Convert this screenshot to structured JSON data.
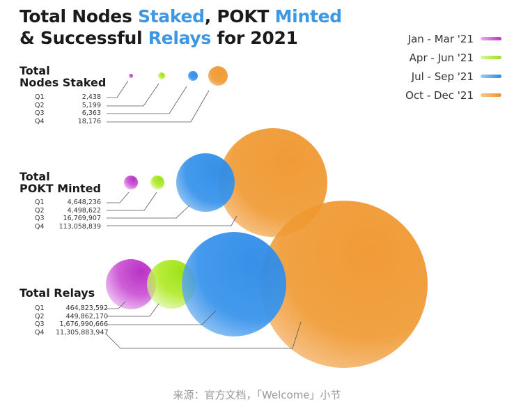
{
  "title": {
    "line1_a": "Total Nodes ",
    "line1_b": "Staked",
    ", POKT ": "",
    "line1_c": ", POKT ",
    "line1_d": "Minted",
    "line2_a": "& Successful ",
    "line2_b": "Relays",
    "line2_c": " for 2021"
  },
  "legend": [
    {
      "label": "Jan - Mar '21",
      "color": "#b832c4"
    },
    {
      "label": "Apr - Jun '21",
      "color": "#9de21c"
    },
    {
      "label": "Jul - Sep '21",
      "color": "#2d8ae6"
    },
    {
      "label": "Oct - Dec '21",
      "color": "#ef9226"
    }
  ],
  "groups": [
    {
      "title1": "Total",
      "title2": "Nodes Staked",
      "rows": [
        {
          "q": "Q1",
          "v": "2,438"
        },
        {
          "q": "Q2",
          "v": "5,199"
        },
        {
          "q": "Q3",
          "v": "6,363"
        },
        {
          "q": "Q4",
          "v": "18,176"
        }
      ]
    },
    {
      "title1": "Total",
      "title2": "POKT Minted",
      "rows": [
        {
          "q": "Q1",
          "v": "4,648,236"
        },
        {
          "q": "Q2",
          "v": "4,498,622"
        },
        {
          "q": "Q3",
          "v": "16,769,907"
        },
        {
          "q": "Q4",
          "v": "113,058,839"
        }
      ]
    },
    {
      "title1": "Total Relays",
      "title2": "",
      "rows": [
        {
          "q": "Q1",
          "v": "464,823,592"
        },
        {
          "q": "Q2",
          "v": "449,862,170"
        },
        {
          "q": "Q3",
          "v": "1,676,990,666"
        },
        {
          "q": "Q4",
          "v": "11,305,883,947"
        }
      ]
    }
  ],
  "source": "来源：官方文档，「Welcome」小节",
  "chart_data": {
    "type": "bubble",
    "title": "Total Nodes Staked, POKT Minted & Successful Relays for 2021",
    "categories": [
      "Q1",
      "Q2",
      "Q3",
      "Q4"
    ],
    "series": [
      {
        "name": "Total Nodes Staked",
        "values": [
          2438,
          5199,
          6363,
          18176
        ]
      },
      {
        "name": "Total POKT Minted",
        "values": [
          4648236,
          4498622,
          16769907,
          113058839
        ]
      },
      {
        "name": "Total Relays",
        "values": [
          464823592,
          449862170,
          1676990666,
          11305883947
        ]
      }
    ],
    "legend_placement": "top-right"
  }
}
